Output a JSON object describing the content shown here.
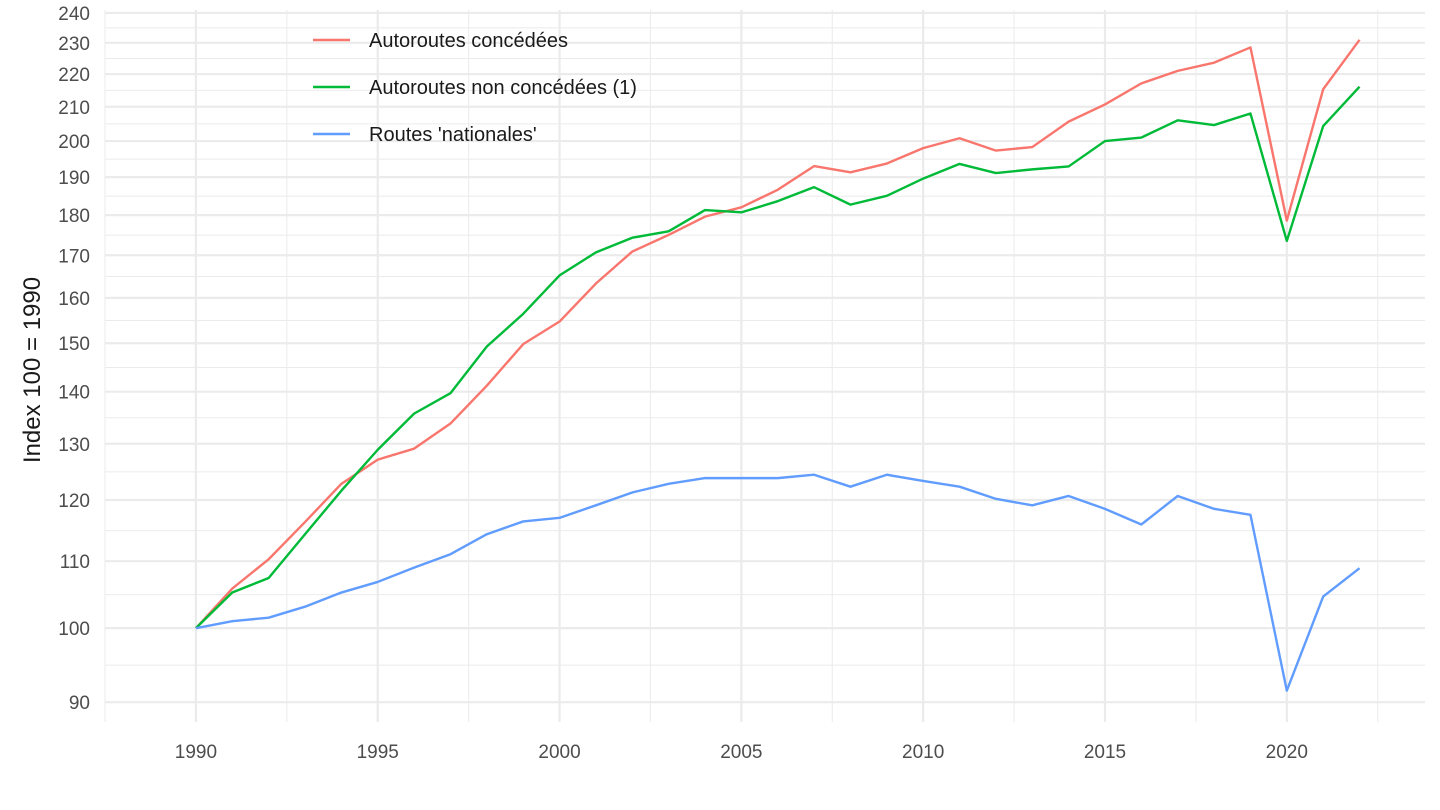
{
  "chart_data": {
    "type": "line",
    "title": "",
    "xlabel": "",
    "ylabel": "Index 100 = 1990",
    "y_scale": "log",
    "grid": true,
    "legend_position": "top-left inside",
    "xlim": [
      1987.5,
      2023.8
    ],
    "ylim": [
      87.5,
      241
    ],
    "x_ticks": [
      1990,
      1995,
      2000,
      2005,
      2010,
      2015,
      2020
    ],
    "x_tick_labels": [
      "1990",
      "1995",
      "2000",
      "2005",
      "2010",
      "2015",
      "2020"
    ],
    "y_ticks": [
      90,
      100,
      110,
      120,
      130,
      140,
      150,
      160,
      170,
      180,
      190,
      200,
      210,
      220,
      230,
      240
    ],
    "y_tick_labels": [
      "90",
      "100",
      "110",
      "120",
      "130",
      "140",
      "150",
      "160",
      "170",
      "180",
      "190",
      "200",
      "210",
      "220",
      "230",
      "240"
    ],
    "x": [
      1990,
      1991,
      1992,
      1993,
      1994,
      1995,
      1996,
      1997,
      1998,
      1999,
      2000,
      2001,
      2002,
      2003,
      2004,
      2005,
      2006,
      2007,
      2008,
      2009,
      2010,
      2011,
      2012,
      2013,
      2014,
      2015,
      2016,
      2017,
      2018,
      2019,
      2020,
      2021,
      2022
    ],
    "series": [
      {
        "name": "Autoroutes concédées",
        "color": "#F8766D",
        "values": [
          100,
          105.8,
          110.3,
          116.3,
          122.8,
          127.1,
          129.1,
          133.8,
          141.2,
          149.8,
          154.7,
          163.3,
          170.9,
          175.0,
          179.6,
          182.0,
          186.6,
          193.0,
          191.3,
          193.7,
          198.0,
          200.8,
          197.3,
          198.3,
          205.6,
          210.7,
          217.1,
          221.0,
          223.6,
          228.5,
          178.6,
          215.3,
          231.0
        ]
      },
      {
        "name": "Autoroutes non concédées (1)",
        "color": "#00BA38",
        "values": [
          100,
          105.2,
          107.4,
          114.3,
          121.6,
          128.9,
          135.7,
          139.7,
          149.3,
          156.4,
          165.2,
          170.7,
          174.3,
          175.9,
          181.3,
          180.7,
          183.6,
          187.3,
          182.7,
          185.0,
          189.6,
          193.6,
          191.1,
          192.1,
          192.9,
          200.0,
          201.0,
          206.0,
          204.6,
          208.0,
          173.5,
          204.3,
          216.1
        ]
      },
      {
        "name": "Routes 'nationales'",
        "color": "#619CFF",
        "values": [
          100,
          101.0,
          101.5,
          103.1,
          105.2,
          106.8,
          109.0,
          111.1,
          114.3,
          116.4,
          117.0,
          119.1,
          121.3,
          122.8,
          123.8,
          123.8,
          123.8,
          124.4,
          122.3,
          124.4,
          123.3,
          122.3,
          120.2,
          119.1,
          120.7,
          118.5,
          115.9,
          120.7,
          118.5,
          117.5,
          91.5,
          104.6,
          108.9
        ]
      }
    ]
  }
}
